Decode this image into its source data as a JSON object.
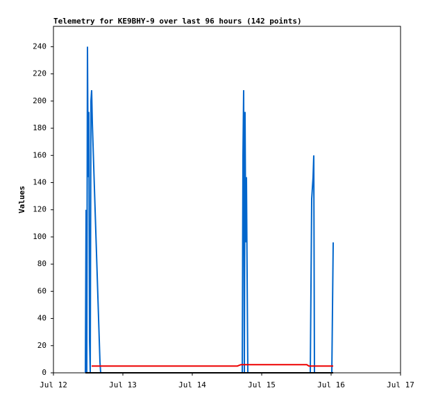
{
  "chart_data": {
    "type": "line",
    "title": "Telemetry for KE9BHY-9 over last 96 hours (142 points)",
    "ylabel": "Values",
    "xlim": [
      0,
      5
    ],
    "xticks": [
      {
        "value": 0,
        "label": "Jul 12"
      },
      {
        "value": 1,
        "label": "Jul 13"
      },
      {
        "value": 2,
        "label": "Jul 14"
      },
      {
        "value": 3,
        "label": "Jul 15"
      },
      {
        "value": 4,
        "label": "Jul 16"
      },
      {
        "value": 5,
        "label": "Jul 17"
      }
    ],
    "ylim": [
      0,
      255
    ],
    "yticks": [
      0,
      20,
      40,
      60,
      80,
      100,
      120,
      140,
      160,
      180,
      200,
      220,
      240
    ],
    "series": [
      {
        "name": "black",
        "color": "#000000",
        "x": [
          0.46,
          4.03
        ],
        "values": [
          0,
          0
        ]
      },
      {
        "name": "red",
        "color": "#ee0000",
        "x": [
          0.55,
          2.65,
          2.7,
          3.65,
          3.68,
          4.03
        ],
        "values": [
          5,
          5,
          6,
          6,
          5,
          5
        ]
      },
      {
        "name": "blue",
        "color": "#0066cc",
        "x": [
          0.46,
          0.47,
          0.48,
          0.49,
          0.5,
          0.51,
          0.52,
          0.53,
          0.54,
          0.55,
          0.56,
          0.57,
          0.58,
          0.59,
          0.6,
          0.61,
          0.62,
          0.63,
          0.64,
          0.65,
          0.66,
          0.67,
          0.68,
          2.72,
          2.73,
          2.74,
          2.75,
          2.76,
          2.77,
          2.78,
          2.79,
          2.8,
          3.7,
          3.71,
          3.72,
          3.73,
          3.74,
          3.75,
          3.76,
          4.01,
          4.02,
          4.03
        ],
        "values": [
          0,
          120,
          0,
          240,
          144,
          192,
          24,
          0,
          200,
          208,
          184,
          168,
          152,
          136,
          120,
          104,
          88,
          72,
          56,
          40,
          24,
          8,
          0,
          0,
          160,
          208,
          0,
          192,
          96,
          144,
          72,
          0,
          0,
          64,
          128,
          136,
          144,
          160,
          0,
          0,
          48,
          96
        ]
      }
    ]
  }
}
